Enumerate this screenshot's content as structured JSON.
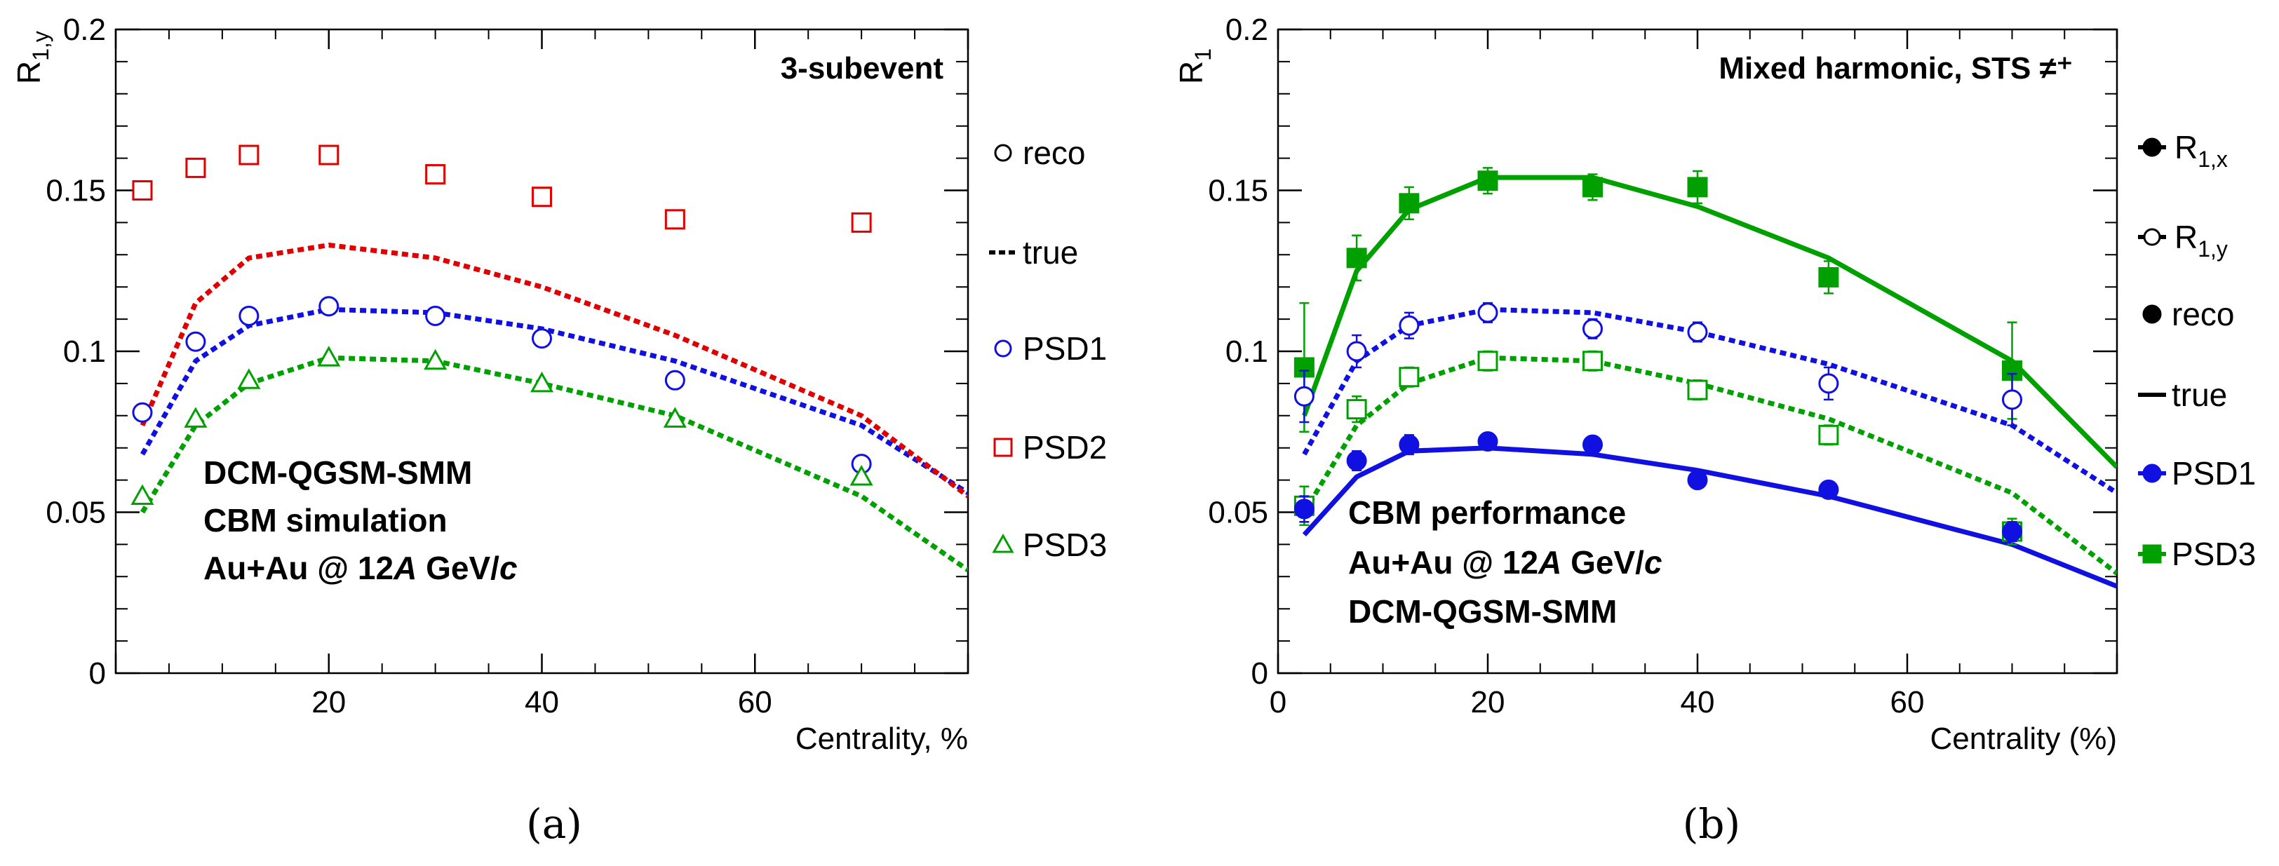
{
  "chart_data": [
    {
      "panel": "a",
      "type": "line",
      "caption": "(a)",
      "title": "3-subevent",
      "xlabel": "Centrality, %",
      "ylabel": "R1,y",
      "ylabel_main": "R",
      "ylabel_sub": "1,y",
      "xlim": [
        0,
        80
      ],
      "ylim": [
        0,
        0.2
      ],
      "xticks": [
        20,
        40,
        60
      ],
      "yticks": [
        0,
        0.05,
        0.1,
        0.15,
        0.2
      ],
      "ytick_labels": [
        "0",
        "0.05",
        "0.1",
        "0.15",
        "0.2"
      ],
      "grid": false,
      "legend_position": "right, outside plot",
      "legend": [
        {
          "label": "reco",
          "style": "open-circle-black"
        },
        {
          "label": "true",
          "style": "dotted-line-black"
        },
        {
          "label": "PSD1",
          "style": "open-circle-blue-dotted"
        },
        {
          "label": "PSD2",
          "style": "open-square-red-dotted"
        },
        {
          "label": "PSD3",
          "style": "open-triangle-green-dotted"
        }
      ],
      "annotation": [
        "DCM-QGSM-SMM",
        "CBM simulation",
        "Au+Au @ 12A GeV/c"
      ],
      "series": [
        {
          "name": "PSD1",
          "kind": "reco",
          "color": "#1010e0",
          "marker": "circle-open",
          "x": [
            2.5,
            7.5,
            12.5,
            20,
            30,
            40,
            52.5,
            70
          ],
          "y": [
            0.081,
            0.103,
            0.111,
            0.114,
            0.111,
            0.104,
            0.091,
            0.065
          ]
        },
        {
          "name": "PSD1",
          "kind": "true",
          "color": "#1010e0",
          "line": "dotted",
          "x": [
            2.5,
            7.5,
            12.5,
            20,
            30,
            40,
            52.5,
            70,
            80
          ],
          "y": [
            0.068,
            0.097,
            0.108,
            0.113,
            0.112,
            0.107,
            0.097,
            0.077,
            0.056
          ]
        },
        {
          "name": "PSD2",
          "kind": "reco",
          "color": "#e00000",
          "marker": "square-open",
          "x": [
            2.5,
            7.5,
            12.5,
            20,
            30,
            40,
            52.5,
            70
          ],
          "y": [
            0.15,
            0.157,
            0.161,
            0.161,
            0.155,
            0.148,
            0.141,
            0.14
          ]
        },
        {
          "name": "PSD2",
          "kind": "true",
          "color": "#e00000",
          "line": "dotted",
          "x": [
            2.5,
            7.5,
            12.5,
            20,
            30,
            40,
            52.5,
            70,
            80
          ],
          "y": [
            0.077,
            0.115,
            0.129,
            0.133,
            0.129,
            0.12,
            0.105,
            0.08,
            0.055
          ]
        },
        {
          "name": "PSD3",
          "kind": "reco",
          "color": "#00a000",
          "marker": "triangle-open",
          "x": [
            2.5,
            7.5,
            12.5,
            20,
            30,
            40,
            52.5,
            70
          ],
          "y": [
            0.055,
            0.079,
            0.091,
            0.098,
            0.097,
            0.09,
            0.079,
            0.061
          ]
        },
        {
          "name": "PSD3",
          "kind": "true",
          "color": "#00a000",
          "line": "dotted",
          "x": [
            2.5,
            7.5,
            12.5,
            20,
            30,
            40,
            52.5,
            70,
            80
          ],
          "y": [
            0.05,
            0.077,
            0.09,
            0.098,
            0.097,
            0.09,
            0.08,
            0.055,
            0.032
          ]
        }
      ]
    },
    {
      "panel": "b",
      "type": "line",
      "caption": "(b)",
      "title": "Mixed harmonic, STS ≠⁺",
      "xlabel": "Centrality (%)",
      "ylabel": "R1",
      "ylabel_main": "R",
      "ylabel_sub": "1",
      "xlim": [
        0,
        80
      ],
      "ylim": [
        0,
        0.2
      ],
      "xticks": [
        0,
        20,
        40,
        60
      ],
      "yticks": [
        0,
        0.05,
        0.1,
        0.15,
        0.2
      ],
      "ytick_labels": [
        "0",
        "0.05",
        "0.1",
        "0.15",
        "0.2"
      ],
      "grid": false,
      "legend_position": "right, outside plot",
      "legend": [
        {
          "label": "R1,x",
          "main": "R",
          "sub": "1,x",
          "style": "filled-circle-line-black"
        },
        {
          "label": "R1,y",
          "main": "R",
          "sub": "1,y",
          "style": "open-circle-line-black"
        },
        {
          "label": "reco",
          "style": "filled-circle-black"
        },
        {
          "label": "true",
          "style": "solid-line-black"
        },
        {
          "label": "PSD1",
          "style": "filled-circle-blue-line"
        },
        {
          "label": "PSD3",
          "style": "filled-square-green-line"
        }
      ],
      "annotation": [
        "CBM performance",
        "Au+Au @ 12A GeV/c",
        "DCM-QGSM-SMM"
      ],
      "series": [
        {
          "name": "PSD3 R1,x",
          "kind": "reco",
          "color": "#00a000",
          "marker": "square-filled",
          "x": [
            2.5,
            7.5,
            12.5,
            20,
            30,
            40,
            52.5,
            70
          ],
          "y": [
            0.095,
            0.129,
            0.146,
            0.153,
            0.151,
            0.151,
            0.123,
            0.094
          ],
          "err": [
            0.02,
            0.007,
            0.005,
            0.004,
            0.004,
            0.005,
            0.005,
            0.015
          ]
        },
        {
          "name": "PSD3 R1,x",
          "kind": "true",
          "color": "#00a000",
          "line": "solid",
          "x": [
            2.5,
            7.5,
            12.5,
            20,
            30,
            40,
            52.5,
            70,
            80
          ],
          "y": [
            0.08,
            0.125,
            0.144,
            0.154,
            0.154,
            0.145,
            0.129,
            0.097,
            0.064
          ]
        },
        {
          "name": "PSD1 R1,y",
          "kind": "reco",
          "color": "#1010e0",
          "marker": "circle-open",
          "x": [
            2.5,
            7.5,
            12.5,
            20,
            30,
            40,
            52.5,
            70
          ],
          "y": [
            0.086,
            0.1,
            0.108,
            0.112,
            0.107,
            0.106,
            0.09,
            0.085
          ],
          "err": [
            0.008,
            0.005,
            0.004,
            0.003,
            0.003,
            0.003,
            0.005,
            0.008
          ]
        },
        {
          "name": "PSD1 R1,y",
          "kind": "true",
          "color": "#1010e0",
          "line": "dotted",
          "x": [
            2.5,
            7.5,
            12.5,
            20,
            30,
            40,
            52.5,
            70,
            80
          ],
          "y": [
            0.068,
            0.097,
            0.108,
            0.113,
            0.112,
            0.106,
            0.096,
            0.077,
            0.056
          ]
        },
        {
          "name": "PSD3 R1,y",
          "kind": "reco",
          "color": "#00a000",
          "marker": "square-open",
          "x": [
            2.5,
            7.5,
            12.5,
            20,
            30,
            40,
            52.5,
            70
          ],
          "y": [
            0.052,
            0.082,
            0.092,
            0.097,
            0.097,
            0.088,
            0.074,
            0.044
          ],
          "err": [
            0.006,
            0.004,
            0.003,
            0.003,
            0.003,
            0.003,
            0.003,
            0.004
          ]
        },
        {
          "name": "PSD3 R1,y",
          "kind": "true",
          "color": "#00a000",
          "line": "dotted",
          "x": [
            2.5,
            7.5,
            12.5,
            20,
            30,
            40,
            52.5,
            70,
            80
          ],
          "y": [
            0.05,
            0.077,
            0.09,
            0.098,
            0.097,
            0.09,
            0.079,
            0.056,
            0.031
          ]
        },
        {
          "name": "PSD1 R1,x",
          "kind": "reco",
          "color": "#1010e0",
          "marker": "circle-filled",
          "x": [
            2.5,
            7.5,
            12.5,
            20,
            30,
            40,
            52.5,
            70
          ],
          "y": [
            0.051,
            0.066,
            0.071,
            0.072,
            0.071,
            0.06,
            0.057,
            0.044
          ],
          "err": [
            0.004,
            0.003,
            0.003,
            0.002,
            0.002,
            0.002,
            0.002,
            0.003
          ]
        },
        {
          "name": "PSD1 R1,x",
          "kind": "true",
          "color": "#1010e0",
          "line": "solid",
          "x": [
            2.5,
            7.5,
            12.5,
            20,
            30,
            40,
            52.5,
            70,
            80
          ],
          "y": [
            0.043,
            0.061,
            0.069,
            0.07,
            0.068,
            0.063,
            0.055,
            0.04,
            0.027
          ]
        }
      ]
    }
  ]
}
